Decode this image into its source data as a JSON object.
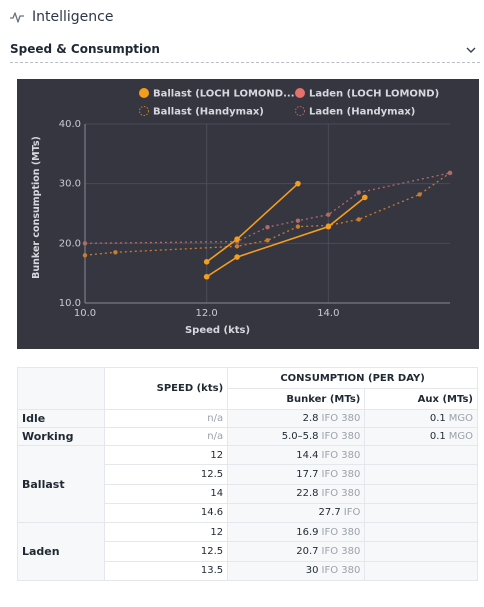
{
  "header": {
    "title": "Intelligence",
    "icon": "pulse-icon"
  },
  "section": {
    "title": "Speed & Consumption",
    "icon": "chevron-down-icon"
  },
  "chart_data": {
    "type": "line",
    "xlabel": "Speed (kts)",
    "ylabel": "Bunker consumption (MTs)",
    "xlim": [
      10,
      16
    ],
    "ylim": [
      10,
      40
    ],
    "xticks": [
      "10.0",
      "12.0",
      "14.0"
    ],
    "yticks": [
      "10.0",
      "20.0",
      "30.0",
      "40.0"
    ],
    "grid": true,
    "legend_position": "top",
    "series": [
      {
        "name": "Ballast (LOCH LOMOND...",
        "color": "#f59e1b",
        "style": "solid",
        "marker": "filled-circle",
        "points": [
          [
            12,
            14.4
          ],
          [
            12.5,
            17.7
          ],
          [
            14,
            22.8
          ],
          [
            14.6,
            27.7
          ]
        ]
      },
      {
        "name": "Laden (LOCH LOMOND)",
        "color": "#e8706a",
        "style": "solid",
        "marker": "filled-circle",
        "line_color": "#f59e1b",
        "points": [
          [
            12,
            16.9
          ],
          [
            12.5,
            20.7
          ],
          [
            13.5,
            30
          ]
        ]
      },
      {
        "name": "Ballast (Handymax)",
        "color": "#c97d2e",
        "style": "dotted",
        "marker": "dot",
        "points": [
          [
            10,
            18
          ],
          [
            10.5,
            18.5
          ],
          [
            12.5,
            19.5
          ],
          [
            13,
            20.5
          ],
          [
            13.5,
            22.8
          ],
          [
            14,
            23
          ],
          [
            14.5,
            24
          ],
          [
            15.5,
            28.2
          ],
          [
            16,
            31.8
          ]
        ]
      },
      {
        "name": "Laden (Handymax)",
        "color": "#b06a6a",
        "style": "dotted",
        "marker": "dot",
        "points": [
          [
            10,
            20
          ],
          [
            12.5,
            20.3
          ],
          [
            13,
            22.7
          ],
          [
            13.5,
            23.8
          ],
          [
            14,
            24.8
          ],
          [
            14.5,
            28.5
          ],
          [
            16,
            31.8
          ]
        ]
      }
    ]
  },
  "table": {
    "speed_header": "SPEED (kts)",
    "consumption_header": "CONSUMPTION (PER DAY)",
    "bunker_header": "Bunker (MTs)",
    "aux_header": "Aux (MTs)",
    "groups": [
      {
        "label": "Idle",
        "rows": [
          {
            "speed": "n/a",
            "bunker": "2.8",
            "bunker_unit": "IFO 380",
            "aux": "0.1",
            "aux_unit": "MGO"
          }
        ]
      },
      {
        "label": "Working",
        "rows": [
          {
            "speed": "n/a",
            "bunker": "5.0–5.8",
            "bunker_unit": "IFO 380",
            "aux": "0.1",
            "aux_unit": "MGO"
          }
        ]
      },
      {
        "label": "Ballast",
        "rows": [
          {
            "speed": "12",
            "bunker": "14.4",
            "bunker_unit": "IFO 380",
            "aux": "",
            "aux_unit": ""
          },
          {
            "speed": "12.5",
            "bunker": "17.7",
            "bunker_unit": "IFO 380",
            "aux": "",
            "aux_unit": ""
          },
          {
            "speed": "14",
            "bunker": "22.8",
            "bunker_unit": "IFO 380",
            "aux": "",
            "aux_unit": ""
          },
          {
            "speed": "14.6",
            "bunker": "27.7",
            "bunker_unit": "IFO",
            "aux": "",
            "aux_unit": ""
          }
        ]
      },
      {
        "label": "Laden",
        "rows": [
          {
            "speed": "12",
            "bunker": "16.9",
            "bunker_unit": "IFO 380",
            "aux": "",
            "aux_unit": ""
          },
          {
            "speed": "12.5",
            "bunker": "20.7",
            "bunker_unit": "IFO 380",
            "aux": "",
            "aux_unit": ""
          },
          {
            "speed": "13.5",
            "bunker": "30",
            "bunker_unit": "IFO 380",
            "aux": "",
            "aux_unit": ""
          }
        ]
      }
    ]
  }
}
